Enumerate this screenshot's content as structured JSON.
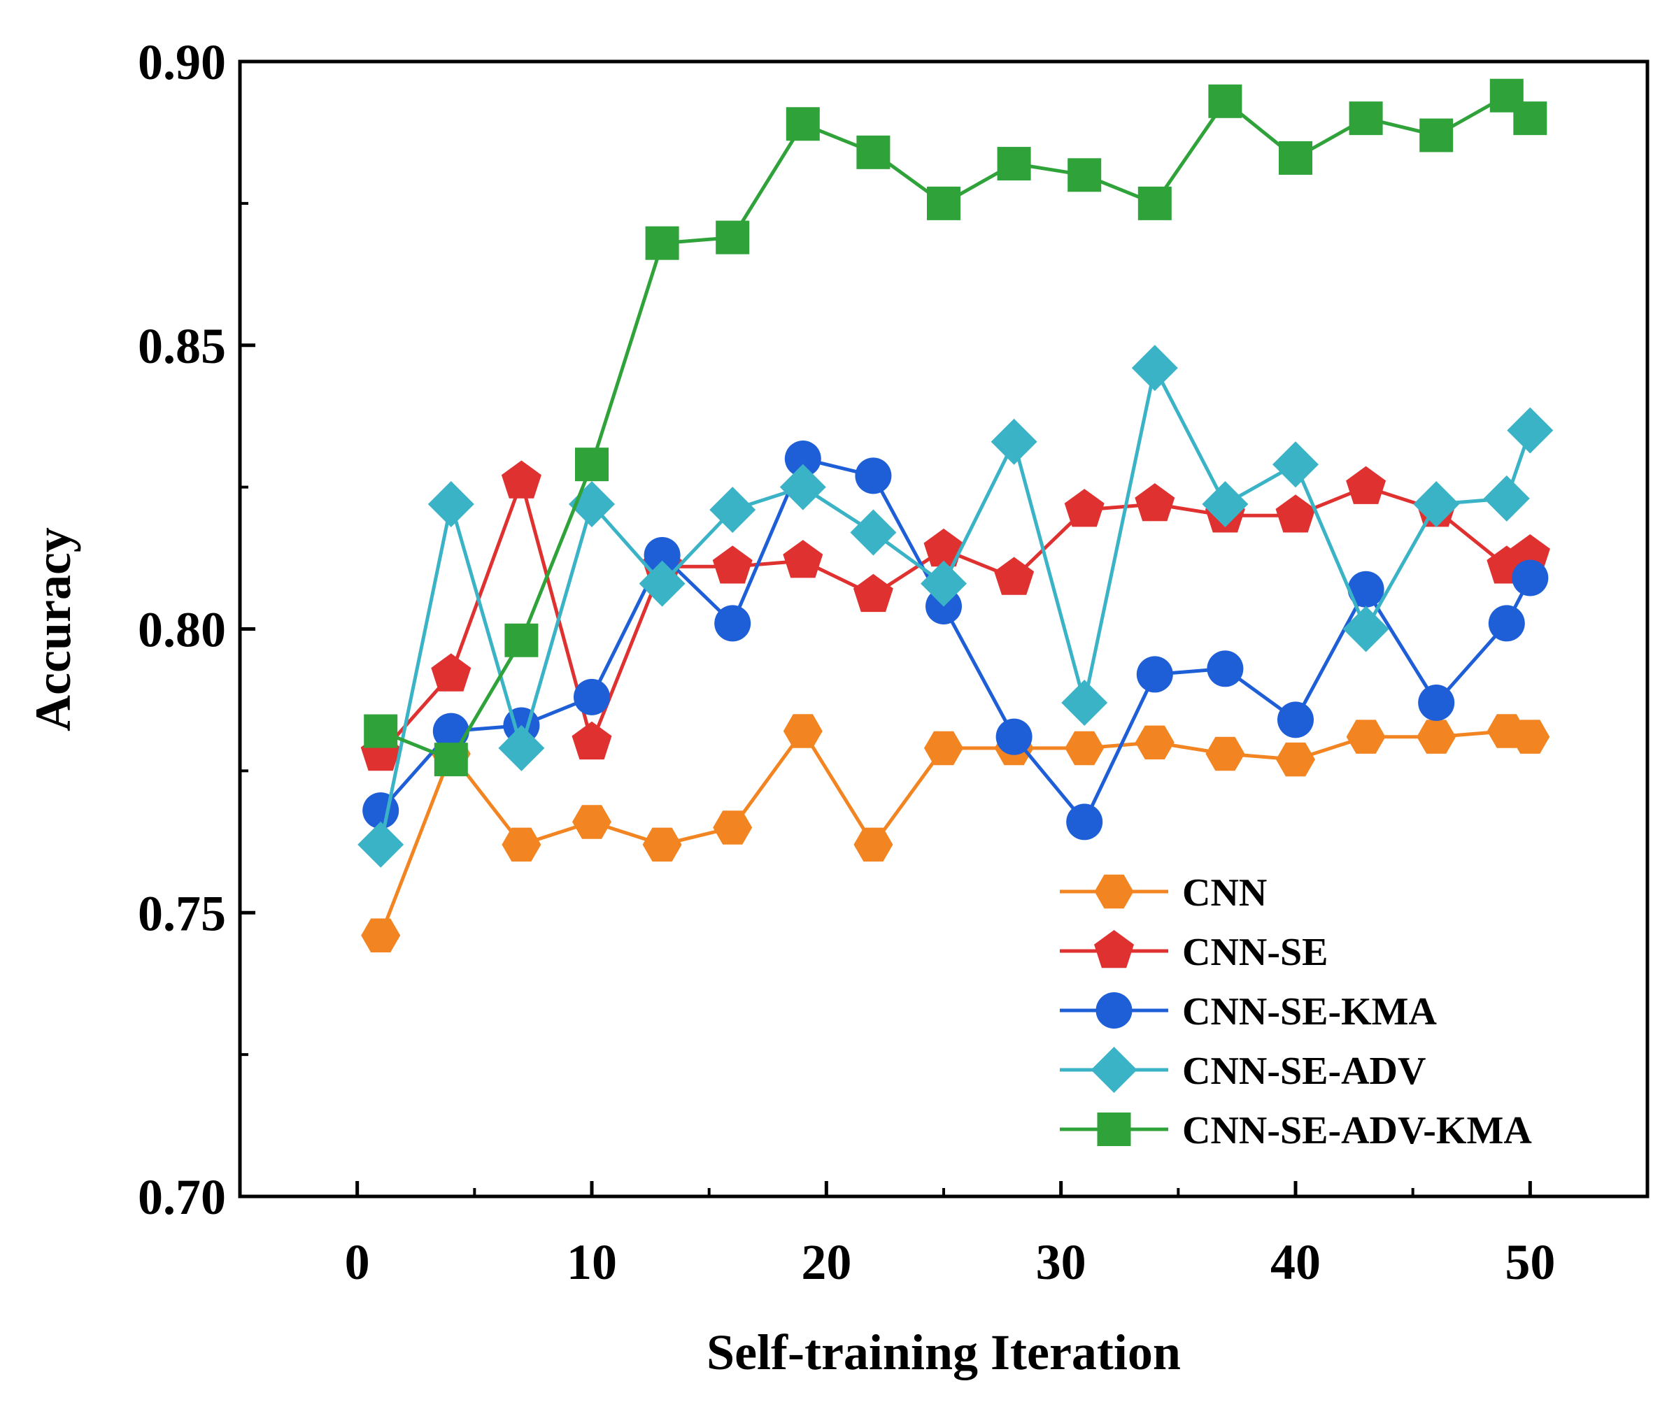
{
  "chart_data": {
    "type": "line",
    "xlabel": "Self-training Iteration",
    "ylabel": "Accuracy",
    "xlim": [
      -5,
      55
    ],
    "ylim": [
      0.7,
      0.9
    ],
    "xticks": [
      0,
      10,
      20,
      30,
      40,
      50
    ],
    "xtick_labels": [
      "0",
      "10",
      "20",
      "30",
      "40",
      "50"
    ],
    "yticks": [
      0.7,
      0.75,
      0.8,
      0.85,
      0.9
    ],
    "ytick_labels": [
      "0.70",
      "0.75",
      "0.80",
      "0.85",
      "0.90"
    ],
    "grid": false,
    "legend_position": "bottom-right",
    "x": [
      1,
      4,
      7,
      10,
      13,
      16,
      19,
      22,
      25,
      28,
      31,
      34,
      37,
      40,
      43,
      46,
      49,
      50
    ],
    "series": [
      {
        "name": "CNN",
        "color": "#F28522",
        "marker": "hexagon",
        "values": [
          0.746,
          0.778,
          0.762,
          0.766,
          0.762,
          0.765,
          0.782,
          0.762,
          0.779,
          0.779,
          0.779,
          0.78,
          0.778,
          0.777,
          0.781,
          0.781,
          0.782,
          0.781
        ]
      },
      {
        "name": "CNN-SE",
        "color": "#E03131",
        "marker": "pentagon",
        "values": [
          0.778,
          0.792,
          0.826,
          0.78,
          0.811,
          0.811,
          0.812,
          0.806,
          0.814,
          0.809,
          0.821,
          0.822,
          0.82,
          0.82,
          0.825,
          0.821,
          0.811,
          0.813
        ]
      },
      {
        "name": "CNN-SE-KMA",
        "color": "#1E5FD8",
        "marker": "circle",
        "values": [
          0.768,
          0.782,
          0.783,
          0.788,
          0.813,
          0.801,
          0.83,
          0.827,
          0.804,
          0.781,
          0.766,
          0.792,
          0.793,
          0.784,
          0.807,
          0.787,
          0.801,
          0.809
        ]
      },
      {
        "name": "CNN-SE-ADV",
        "color": "#3BB3C7",
        "marker": "diamond",
        "values": [
          0.762,
          0.822,
          0.779,
          0.822,
          0.808,
          0.821,
          0.825,
          0.817,
          0.808,
          0.833,
          0.787,
          0.846,
          0.822,
          0.829,
          0.8,
          0.822,
          0.823,
          0.835
        ]
      },
      {
        "name": "CNN-SE-ADV-KMA",
        "color": "#2FA33A",
        "marker": "square",
        "values": [
          0.782,
          0.777,
          0.798,
          0.829,
          0.868,
          0.869,
          0.889,
          0.884,
          0.875,
          0.882,
          0.88,
          0.875,
          0.893,
          0.883,
          0.89,
          0.887,
          0.894,
          0.89
        ]
      }
    ]
  }
}
